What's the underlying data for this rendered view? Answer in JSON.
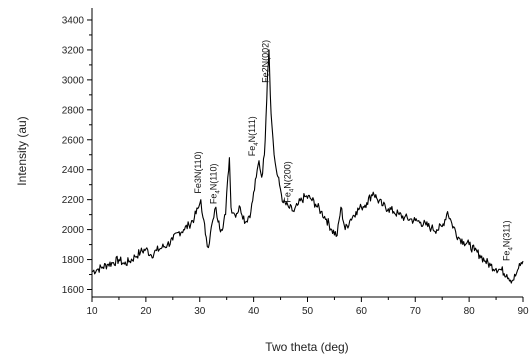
{
  "chart_data": {
    "type": "line",
    "title": "",
    "xlabel": "Two theta (deg)",
    "ylabel": "Intensity (au)",
    "xlim": [
      10,
      90
    ],
    "ylim": [
      1550,
      3480
    ],
    "x_ticks": [
      10,
      20,
      30,
      40,
      50,
      60,
      70,
      80,
      90
    ],
    "y_ticks": [
      1600,
      1800,
      2000,
      2200,
      2400,
      2600,
      2800,
      3000,
      3200,
      3400
    ],
    "grid": false,
    "legend": "none",
    "series": [
      {
        "color": "#000000",
        "points": [
          [
            10,
            1720
          ],
          [
            11,
            1735
          ],
          [
            12,
            1750
          ],
          [
            13,
            1770
          ],
          [
            14,
            1780
          ],
          [
            15,
            1800
          ],
          [
            16,
            1770
          ],
          [
            17,
            1790
          ],
          [
            18,
            1820
          ],
          [
            19,
            1850
          ],
          [
            20,
            1870
          ],
          [
            21,
            1830
          ],
          [
            22,
            1860
          ],
          [
            23,
            1880
          ],
          [
            24,
            1900
          ],
          [
            25,
            1930
          ],
          [
            26,
            1980
          ],
          [
            27,
            2000
          ],
          [
            28,
            2030
          ],
          [
            29,
            2080
          ],
          [
            29.8,
            2150
          ],
          [
            30.2,
            2200
          ],
          [
            30.6,
            2080
          ],
          [
            31.2,
            1950
          ],
          [
            31.6,
            1880
          ],
          [
            32,
            1980
          ],
          [
            32.6,
            2080
          ],
          [
            33.0,
            2150
          ],
          [
            33.4,
            2050
          ],
          [
            34,
            2000
          ],
          [
            34.8,
            2100
          ],
          [
            35.2,
            2350
          ],
          [
            35.5,
            2480
          ],
          [
            35.8,
            2150
          ],
          [
            36.5,
            2100
          ],
          [
            37.5,
            2150
          ],
          [
            38.5,
            2050
          ],
          [
            39.5,
            2120
          ],
          [
            40.5,
            2350
          ],
          [
            41.0,
            2460
          ],
          [
            41.5,
            2350
          ],
          [
            42.0,
            2500
          ],
          [
            42.3,
            2750
          ],
          [
            42.6,
            3050
          ],
          [
            42.85,
            3200
          ],
          [
            43.1,
            2900
          ],
          [
            43.4,
            2700
          ],
          [
            43.8,
            2500
          ],
          [
            44.2,
            2400
          ],
          [
            44.8,
            2300
          ],
          [
            45.5,
            2180
          ],
          [
            46.5,
            2150
          ],
          [
            47.5,
            2120
          ],
          [
            48.3,
            2170
          ],
          [
            49.5,
            2220
          ],
          [
            50.5,
            2210
          ],
          [
            51.5,
            2170
          ],
          [
            52.5,
            2120
          ],
          [
            53.5,
            2070
          ],
          [
            54.5,
            2000
          ],
          [
            55.5,
            1960
          ],
          [
            56.2,
            2150
          ],
          [
            57,
            2000
          ],
          [
            58,
            2070
          ],
          [
            59,
            2120
          ],
          [
            60,
            2150
          ],
          [
            61,
            2180
          ],
          [
            62.2,
            2250
          ],
          [
            63,
            2200
          ],
          [
            64,
            2160
          ],
          [
            65,
            2140
          ],
          [
            66,
            2120
          ],
          [
            67,
            2100
          ],
          [
            68,
            2080
          ],
          [
            69,
            2070
          ],
          [
            70,
            2060
          ],
          [
            71,
            2050
          ],
          [
            72,
            2030
          ],
          [
            73,
            2010
          ],
          [
            74,
            2000
          ],
          [
            75,
            2020
          ],
          [
            76,
            2120
          ],
          [
            76.8,
            2040
          ],
          [
            78,
            1950
          ],
          [
            79,
            1920
          ],
          [
            80,
            1900
          ],
          [
            81,
            1860
          ],
          [
            82,
            1830
          ],
          [
            83,
            1790
          ],
          [
            84,
            1760
          ],
          [
            85,
            1740
          ],
          [
            86,
            1730
          ],
          [
            87,
            1700
          ],
          [
            88,
            1660
          ],
          [
            88.6,
            1690
          ],
          [
            89,
            1730
          ],
          [
            89.5,
            1760
          ],
          [
            90,
            1790
          ]
        ]
      }
    ],
    "annotations": [
      {
        "text": "Fe3N(110)",
        "x": 30.2,
        "y": 2240
      },
      {
        "text": "Fe",
        "sub": "4",
        "suffix": "N(110)",
        "x": 33.1,
        "y": 2170
      },
      {
        "text": "Fe",
        "sub": "4",
        "suffix": "N(111)",
        "x": 40.3,
        "y": 2490
      },
      {
        "text": "Fe2N(002)",
        "x": 42.8,
        "y": 2980
      },
      {
        "text": "Fe",
        "sub": "4",
        "suffix": "N(200)",
        "x": 46.8,
        "y": 2180
      },
      {
        "text": "Fe",
        "sub": "4",
        "suffix": "N(311)",
        "x": 87.5,
        "y": 1790
      }
    ]
  }
}
